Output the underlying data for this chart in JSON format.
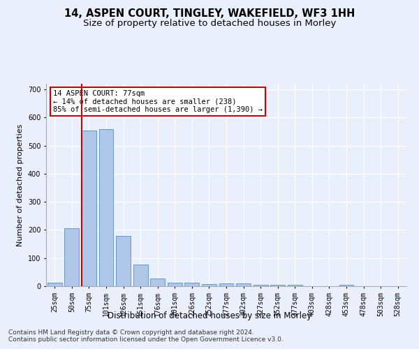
{
  "title": "14, ASPEN COURT, TINGLEY, WAKEFIELD, WF3 1HH",
  "subtitle": "Size of property relative to detached houses in Morley",
  "xlabel": "Distribution of detached houses by size in Morley",
  "ylabel": "Number of detached properties",
  "categories": [
    "25sqm",
    "50sqm",
    "75sqm",
    "101sqm",
    "126sqm",
    "151sqm",
    "176sqm",
    "201sqm",
    "226sqm",
    "252sqm",
    "277sqm",
    "302sqm",
    "327sqm",
    "352sqm",
    "377sqm",
    "403sqm",
    "428sqm",
    "453sqm",
    "478sqm",
    "503sqm",
    "528sqm"
  ],
  "values": [
    13,
    205,
    553,
    558,
    178,
    77,
    28,
    12,
    12,
    8,
    10,
    10,
    6,
    5,
    5,
    0,
    0,
    6,
    0,
    0,
    0
  ],
  "bar_color": "#aec6e8",
  "bar_edge_color": "#5a8fc2",
  "vline_color": "#cc0000",
  "annotation_text": "14 ASPEN COURT: 77sqm\n← 14% of detached houses are smaller (238)\n85% of semi-detached houses are larger (1,390) →",
  "annotation_box_color": "#ffffff",
  "annotation_box_edge_color": "#cc0000",
  "ylim": [
    0,
    720
  ],
  "yticks": [
    0,
    100,
    200,
    300,
    400,
    500,
    600,
    700
  ],
  "background_color": "#eaf0fb",
  "plot_bg_color": "#eaf0fb",
  "footer_line1": "Contains HM Land Registry data © Crown copyright and database right 2024.",
  "footer_line2": "Contains public sector information licensed under the Open Government Licence v3.0.",
  "title_fontsize": 10.5,
  "subtitle_fontsize": 9.5,
  "xlabel_fontsize": 8.5,
  "ylabel_fontsize": 8,
  "tick_fontsize": 7,
  "footer_fontsize": 6.5,
  "annotation_fontsize": 7.5
}
